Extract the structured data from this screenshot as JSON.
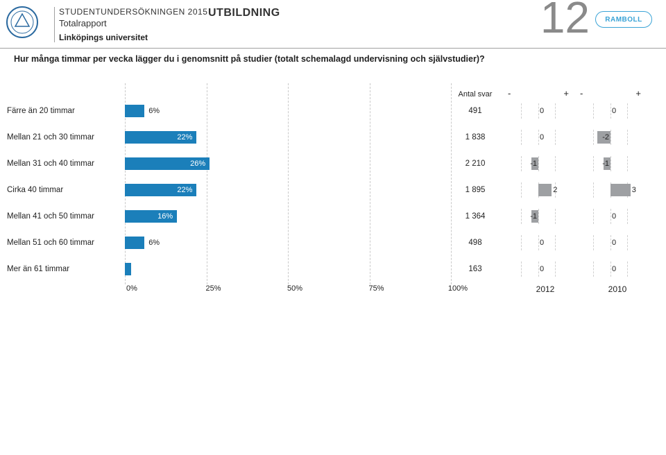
{
  "header": {
    "survey_title": "STUDENTUNDERSÖKNINGEN 2015",
    "report_sub": "Totalrapport",
    "university": "Linköpings universitet",
    "section": "UTBILDNING",
    "page_number": "12",
    "ramboll": "RAMBOLL"
  },
  "question": "Hur många timmar per vecka lägger du i genomsnitt på studier (totalt schemalagd undervisning och självstudier)?",
  "chart": {
    "type": "bar",
    "bar_color": "#1b7fba",
    "bar_text_color": "#ffffff",
    "grid_color": "#c9c9c9",
    "xlim": [
      0,
      100
    ],
    "xtick_step": 25,
    "xticks": [
      "0%",
      "25%",
      "50%",
      "75%",
      "100%"
    ],
    "antal_svar_label": "Antal svar",
    "diff_header_minus": "-",
    "diff_header_plus": "+",
    "diff_color": "#9ea0a3",
    "diff_range": 5,
    "diff_grid_cells": 4,
    "rows": [
      {
        "label": "Färre än 20 timmar",
        "pct": 6,
        "pct_txt": "6%",
        "count": "491",
        "d2012": 0,
        "d2010": 0
      },
      {
        "label": "Mellan 21 och 30 timmar",
        "pct": 22,
        "pct_txt": "22%",
        "count": "1 838",
        "d2012": 0,
        "d2010": -2
      },
      {
        "label": "Mellan 31 och 40 timmar",
        "pct": 26,
        "pct_txt": "26%",
        "count": "2 210",
        "d2012": -1,
        "d2010": -1
      },
      {
        "label": "Cirka 40 timmar",
        "pct": 22,
        "pct_txt": "22%",
        "count": "1 895",
        "d2012": 2,
        "d2010": 3
      },
      {
        "label": "Mellan 41 och 50 timmar",
        "pct": 16,
        "pct_txt": "16%",
        "count": "1 364",
        "d2012": -1,
        "d2010": 0
      },
      {
        "label": "Mellan 51 och 60 timmar",
        "pct": 6,
        "pct_txt": "6%",
        "count": "498",
        "d2012": 0,
        "d2010": 0
      },
      {
        "label": "Mer än 61 timmar",
        "pct": 2,
        "pct_txt": "",
        "count": "163",
        "d2012": 0,
        "d2010": 0
      }
    ],
    "year_labels": [
      "2012",
      "2010"
    ]
  }
}
